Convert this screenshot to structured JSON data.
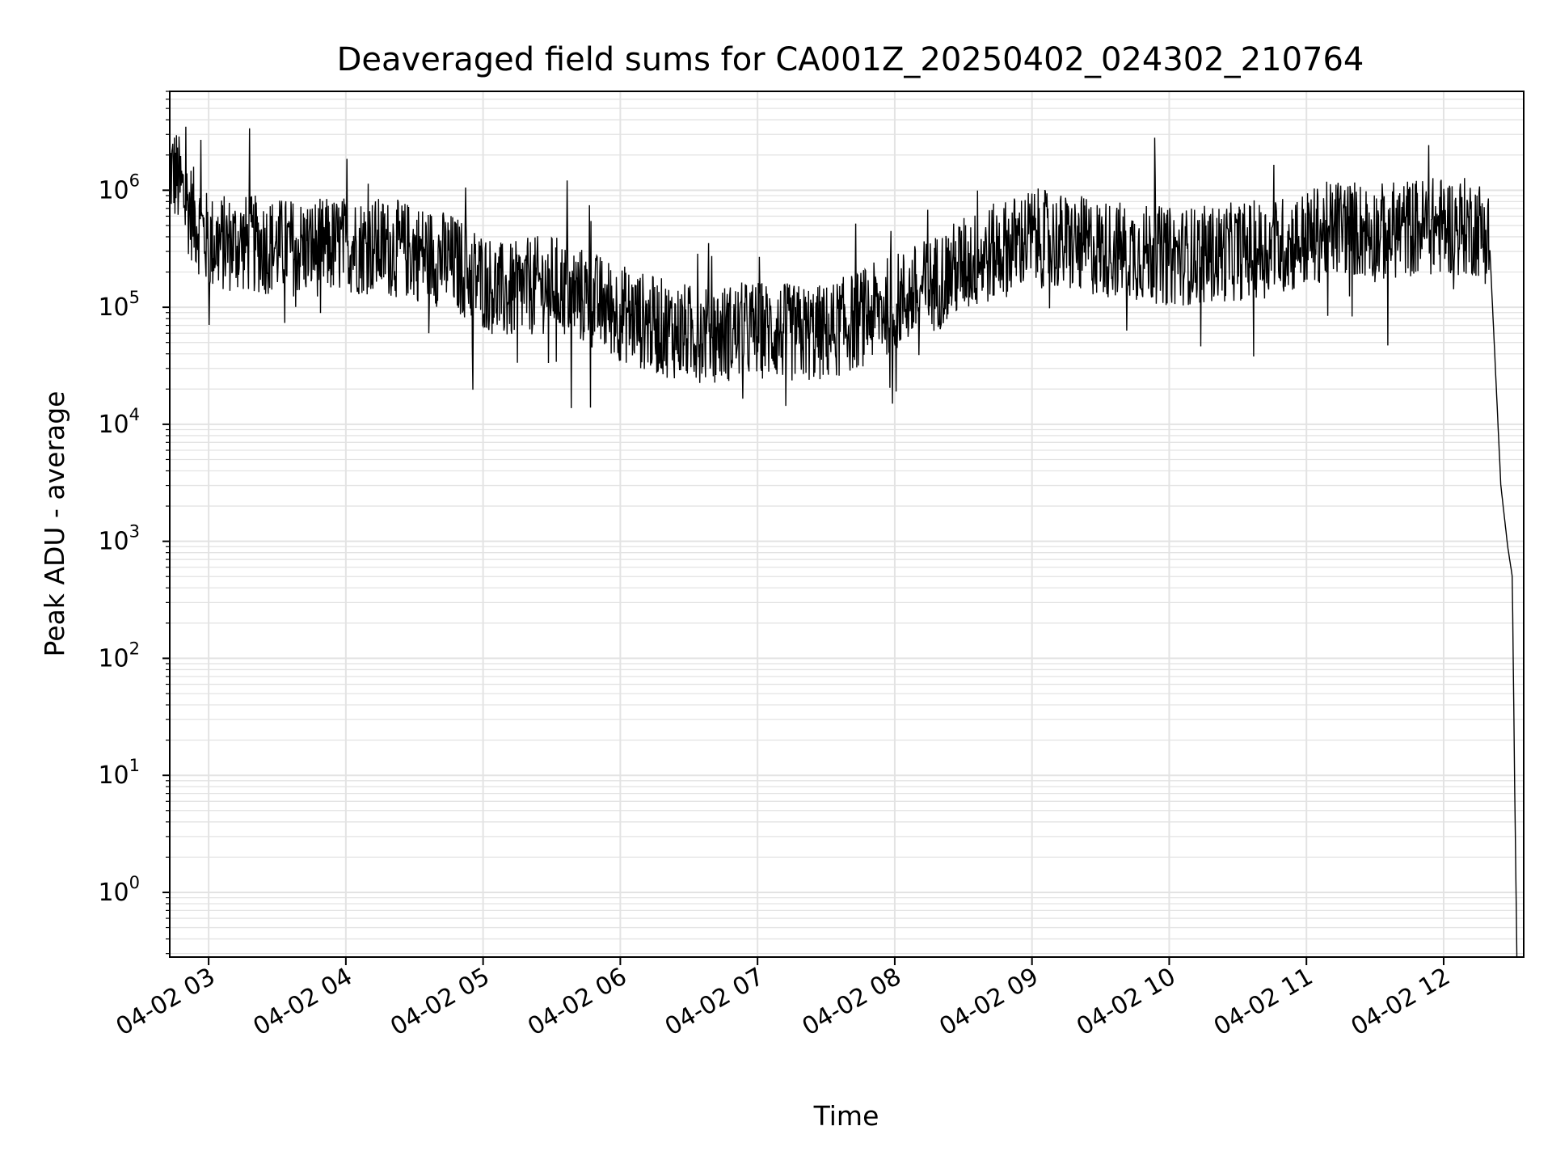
{
  "chart_data": {
    "type": "line",
    "title": "Deaveraged field sums for CA001Z_20250402_024302_210764",
    "xlabel": "Time",
    "ylabel": "Peak ADU - average",
    "yscale": "log",
    "ylim": [
      0.28,
      7000000
    ],
    "xlim": [
      "04-02 02:43",
      "04-02 12:35"
    ],
    "grid": true,
    "line_color": "#000000",
    "grid_color": "#e3e3e3",
    "x_ticks": [
      "04-02 03",
      "04-02 04",
      "04-02 05",
      "04-02 06",
      "04-02 07",
      "04-02 08",
      "04-02 09",
      "04-02 10",
      "04-02 11",
      "04-02 12"
    ],
    "y_ticks": [
      {
        "base": "10",
        "exp": "0"
      },
      {
        "base": "10",
        "exp": "1"
      },
      {
        "base": "10",
        "exp": "2"
      },
      {
        "base": "10",
        "exp": "3"
      },
      {
        "base": "10",
        "exp": "4"
      },
      {
        "base": "10",
        "exp": "5"
      },
      {
        "base": "10",
        "exp": "6"
      }
    ],
    "series": [
      {
        "x": [
          "04-02 02:43",
          "04-02 02:46",
          "04-02 02:50",
          "04-02 03:00",
          "04-02 03:15",
          "04-02 03:30",
          "04-02 03:45",
          "04-02 04:00",
          "04-02 04:15",
          "04-02 04:30",
          "04-02 04:45",
          "04-02 05:00",
          "04-02 05:10",
          "04-02 05:20",
          "04-02 05:30",
          "04-02 05:45",
          "04-02 06:00",
          "04-02 06:15",
          "04-02 06:30",
          "04-02 06:45",
          "04-02 07:00",
          "04-02 07:15",
          "04-02 07:30",
          "04-02 07:45",
          "04-02 08:00",
          "04-02 08:15",
          "04-02 08:30",
          "04-02 08:45",
          "04-02 09:00",
          "04-02 09:15",
          "04-02 09:30",
          "04-02 09:45",
          "04-02 10:00",
          "04-02 10:15",
          "04-02 10:30",
          "04-02 10:45",
          "04-02 11:00",
          "04-02 11:15",
          "04-02 11:30",
          "04-02 11:45",
          "04-02 12:00",
          "04-02 12:15",
          "04-02 12:20",
          "04-02 12:25",
          "04-02 12:28",
          "04-02 12:30",
          "04-02 12:31",
          "04-02 12:32"
        ],
        "y": [
          1500000,
          1300000,
          800000,
          350000,
          350000,
          330000,
          320000,
          340000,
          330000,
          300000,
          250000,
          170000,
          130000,
          150000,
          160000,
          120000,
          90000,
          70000,
          60000,
          60000,
          65000,
          60000,
          60000,
          80000,
          110000,
          150000,
          230000,
          300000,
          400000,
          350000,
          320000,
          300000,
          270000,
          280000,
          300000,
          320000,
          380000,
          500000,
          430000,
          480000,
          500000,
          480000,
          380000,
          3000,
          900,
          500,
          10,
          0.3
        ]
      }
    ]
  }
}
